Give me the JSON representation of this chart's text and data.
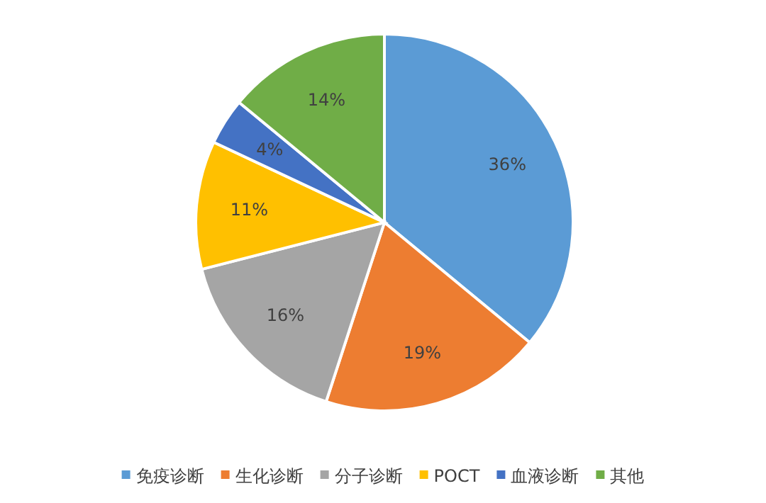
{
  "chart_data": {
    "type": "pie",
    "categories": [
      "免疫诊断",
      "生化诊断",
      "分子诊断",
      "POCT",
      "血液诊断",
      "其他"
    ],
    "values": [
      36,
      19,
      16,
      11,
      4,
      14
    ],
    "colors": [
      "#5b9bd5",
      "#ed7d31",
      "#a5a5a5",
      "#ffc000",
      "#4472c4",
      "#70ad47"
    ],
    "value_labels": [
      "36%",
      "19%",
      "16%",
      "11%",
      "4%",
      "14%"
    ],
    "legend": "bottom"
  }
}
